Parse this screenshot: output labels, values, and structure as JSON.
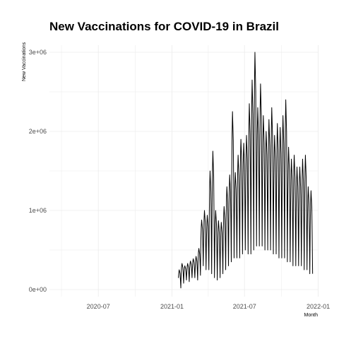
{
  "chart_data": {
    "type": "line",
    "title": "New Vaccinations for COVID-19 in Brazil",
    "xlabel": "Month",
    "ylabel": "New Vaccinations",
    "x_ticks": [
      "2020-07",
      "2021-01",
      "2021-07",
      "2022-01"
    ],
    "y_ticks": [
      "0e+00",
      "1e+06",
      "2e+06",
      "3e+06"
    ],
    "xlim": [
      "2020-03-01",
      "2021-12-31"
    ],
    "ylim": [
      0,
      3000000
    ],
    "grid": true,
    "legend": "none",
    "colors": {
      "line": "#000000",
      "grid": "#ebebeb"
    },
    "series": [
      {
        "x": [
          "2021-01-17",
          "2021-01-24",
          "2021-01-31",
          "2021-02-07",
          "2021-02-14",
          "2021-02-21",
          "2021-02-28",
          "2021-03-07",
          "2021-03-14",
          "2021-03-21",
          "2021-03-28",
          "2021-04-04",
          "2021-04-11",
          "2021-04-18",
          "2021-04-25",
          "2021-05-02",
          "2021-05-09",
          "2021-05-16",
          "2021-05-23",
          "2021-05-30",
          "2021-06-06",
          "2021-06-13",
          "2021-06-20",
          "2021-06-27",
          "2021-07-04",
          "2021-07-11",
          "2021-07-18",
          "2021-07-25",
          "2021-08-01",
          "2021-08-08",
          "2021-08-15",
          "2021-08-22",
          "2021-08-29",
          "2021-09-05",
          "2021-09-12",
          "2021-09-19",
          "2021-09-26",
          "2021-10-03",
          "2021-10-10",
          "2021-10-17",
          "2021-10-24",
          "2021-10-31",
          "2021-11-07",
          "2021-11-14",
          "2021-11-21",
          "2021-11-28",
          "2021-12-05",
          "2021-12-12"
        ],
        "peak": [
          250000,
          330000,
          300000,
          330000,
          360000,
          390000,
          420000,
          520000,
          880000,
          1000000,
          940000,
          1500000,
          1750000,
          1000000,
          870000,
          850000,
          1050000,
          1300000,
          1450000,
          2250000,
          1480000,
          1700000,
          1900000,
          1850000,
          1950000,
          2350000,
          2650000,
          3000000,
          2300000,
          2600000,
          2200000,
          2000000,
          2150000,
          2300000,
          1950000,
          2100000,
          2050000,
          2200000,
          2400000,
          1800000,
          1650000,
          1700000,
          1550000,
          1550000,
          1650000,
          1700000,
          1300000,
          1250000
        ],
        "trough": [
          20000,
          80000,
          120000,
          100000,
          150000,
          150000,
          120000,
          180000,
          300000,
          250000,
          250000,
          200000,
          150000,
          120000,
          150000,
          200000,
          250000,
          300000,
          350000,
          400000,
          400000,
          400000,
          450000,
          500000,
          450000,
          450000,
          500000,
          550000,
          550000,
          550000,
          500000,
          500000,
          500000,
          450000,
          450000,
          400000,
          400000,
          400000,
          350000,
          350000,
          300000,
          300000,
          300000,
          300000,
          250000,
          250000,
          200000,
          200000
        ]
      }
    ]
  }
}
